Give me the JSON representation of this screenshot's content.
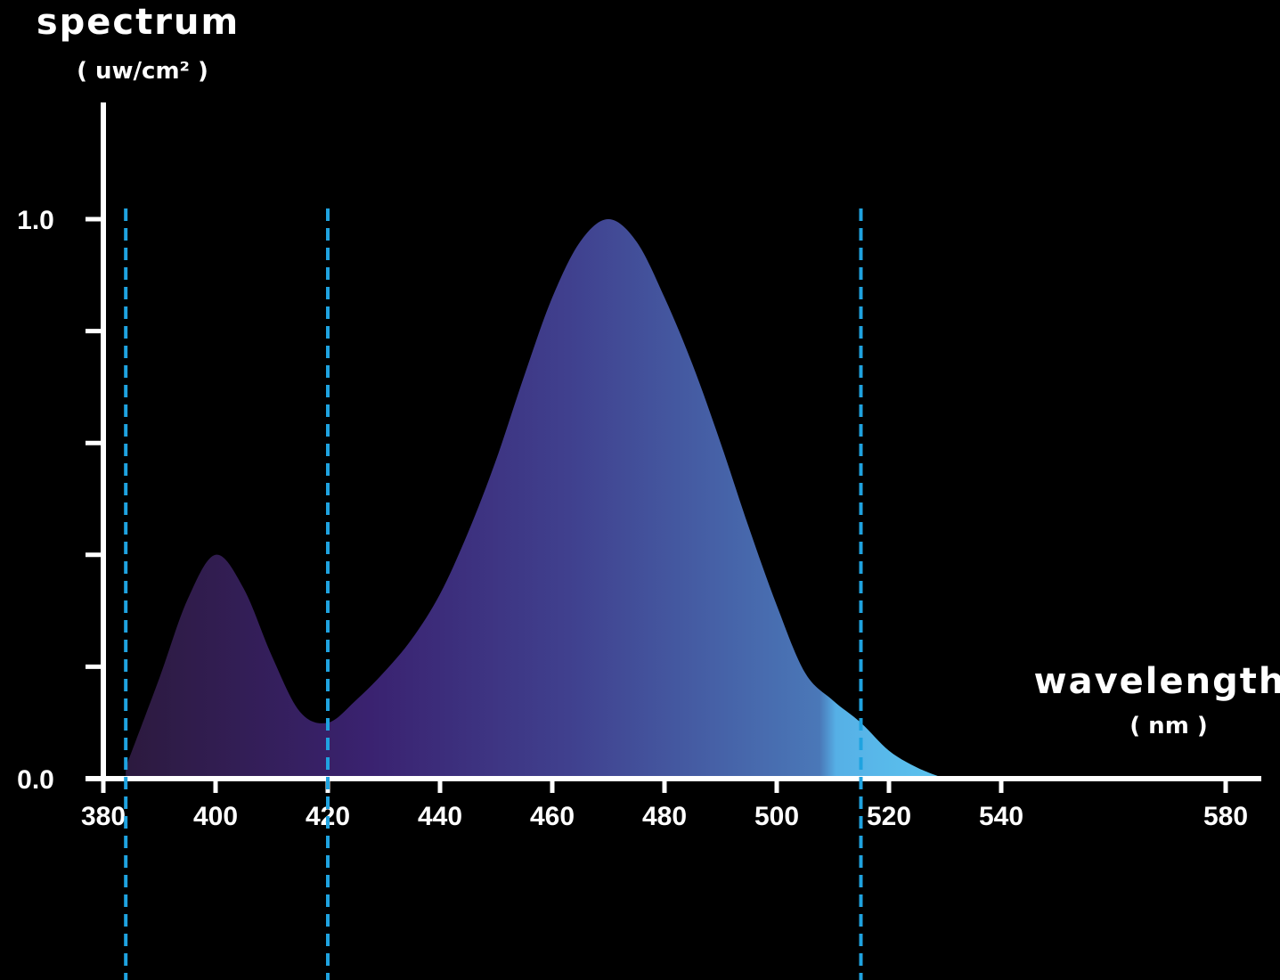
{
  "chart_data": {
    "type": "area",
    "ylabel": "spectrum",
    "ylabel_unit": "( uw/cm² )",
    "xlabel": "wavelength",
    "xlabel_unit": "( nm )",
    "xlim": [
      380,
      610
    ],
    "ylim": [
      0,
      1.2
    ],
    "x_ticks": [
      380,
      400,
      420,
      440,
      460,
      480,
      500,
      520,
      540,
      580
    ],
    "x_tick_labels": [
      "380",
      "400",
      "420",
      "440",
      "460",
      "480",
      "500",
      "520",
      "540",
      "580"
    ],
    "y_tick_values": [
      0,
      0.2,
      0.4,
      0.6,
      0.8,
      1.0
    ],
    "y_tick_labels": [
      "0.0",
      "",
      "",
      "",
      "",
      "1.0"
    ],
    "reference_lines_x": [
      384,
      420,
      515
    ],
    "reference_line_color": "#1fa3e0",
    "gradient_colors": [
      "#2c1a3e",
      "#3a2270",
      "#40418f",
      "#4a78b8",
      "#5bc3ee"
    ],
    "series": [
      {
        "x": [
          384,
          390,
          395,
          400,
          405,
          410,
          415,
          420,
          425,
          430,
          435,
          440,
          445,
          450,
          455,
          460,
          465,
          470,
          475,
          480,
          485,
          490,
          495,
          500,
          505,
          510,
          515,
          520,
          525,
          530
        ],
        "values": [
          0.02,
          0.18,
          0.32,
          0.4,
          0.34,
          0.22,
          0.12,
          0.1,
          0.14,
          0.19,
          0.25,
          0.33,
          0.44,
          0.57,
          0.72,
          0.86,
          0.96,
          1.0,
          0.96,
          0.86,
          0.74,
          0.6,
          0.45,
          0.31,
          0.19,
          0.14,
          0.1,
          0.05,
          0.02,
          0.0
        ]
      }
    ]
  }
}
